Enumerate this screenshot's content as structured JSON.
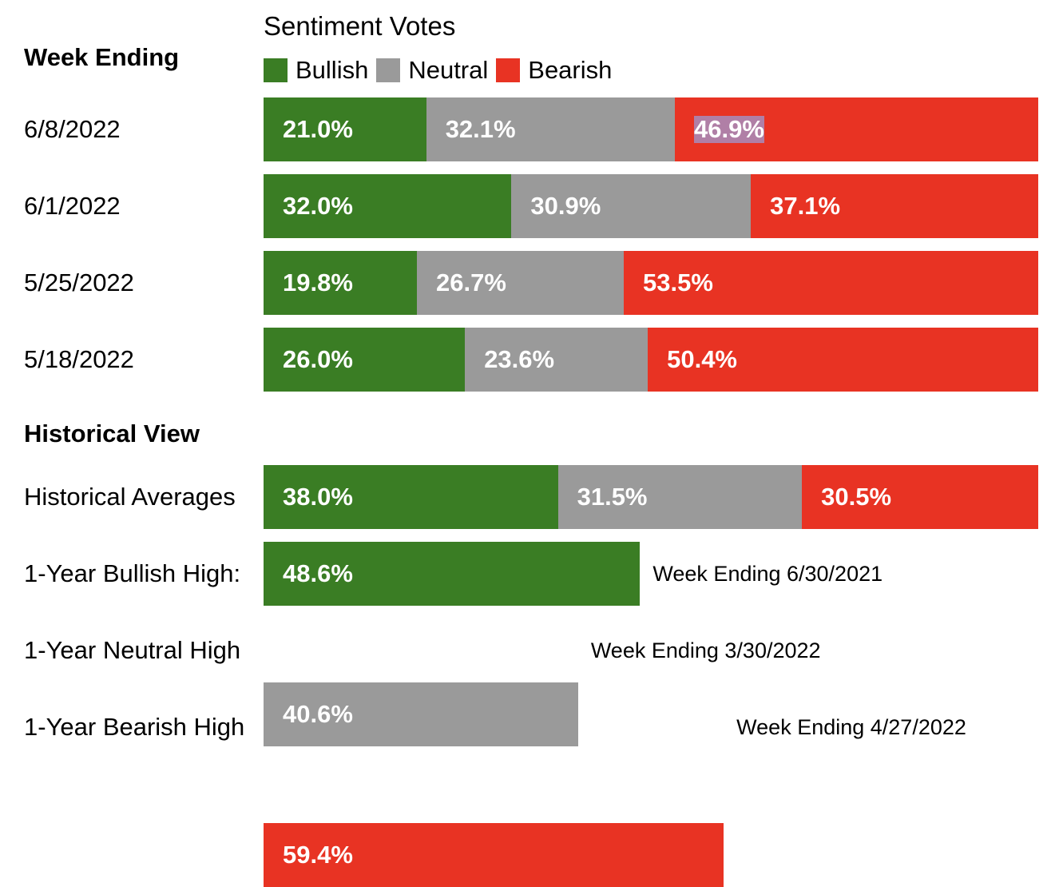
{
  "colors": {
    "bullish": "#3a7d24",
    "neutral": "#9a9a9a",
    "bearish": "#e83323"
  },
  "chart_data": {
    "type": "bar",
    "orientation": "horizontal-stacked",
    "title": "Sentiment Votes",
    "legend": [
      {
        "key": "bullish",
        "label": "Bullish"
      },
      {
        "key": "neutral",
        "label": "Neutral"
      },
      {
        "key": "bearish",
        "label": "Bearish"
      }
    ],
    "legend_placement": "top",
    "xlim": [
      0,
      100
    ],
    "weekly": {
      "header": "Week Ending",
      "rows": [
        {
          "label": "6/8/2022",
          "bullish": 21.0,
          "neutral": 32.1,
          "bearish": 46.9,
          "selected_label": "bearish"
        },
        {
          "label": "6/1/2022",
          "bullish": 32.0,
          "neutral": 30.9,
          "bearish": 37.1
        },
        {
          "label": "5/25/2022",
          "bullish": 19.8,
          "neutral": 26.7,
          "bearish": 53.5
        },
        {
          "label": "5/18/2022",
          "bullish": 26.0,
          "neutral": 23.6,
          "bearish": 50.4
        }
      ]
    },
    "historical": {
      "header": "Historical View",
      "averages": {
        "label": "Historical Averages",
        "bullish": 38.0,
        "neutral": 31.5,
        "bearish": 30.5
      },
      "highs": [
        {
          "label": "1-Year Bullish High:",
          "type": "bullish",
          "value": 48.6,
          "note": "Week Ending 6/30/2021"
        },
        {
          "label": "1-Year Neutral High",
          "type": "neutral",
          "value": 40.6,
          "note": "Week Ending 3/30/2022"
        },
        {
          "label": "1-Year Bearish High",
          "type": "bearish",
          "value": 59.4,
          "note": "Week Ending 4/27/2022"
        }
      ]
    }
  }
}
